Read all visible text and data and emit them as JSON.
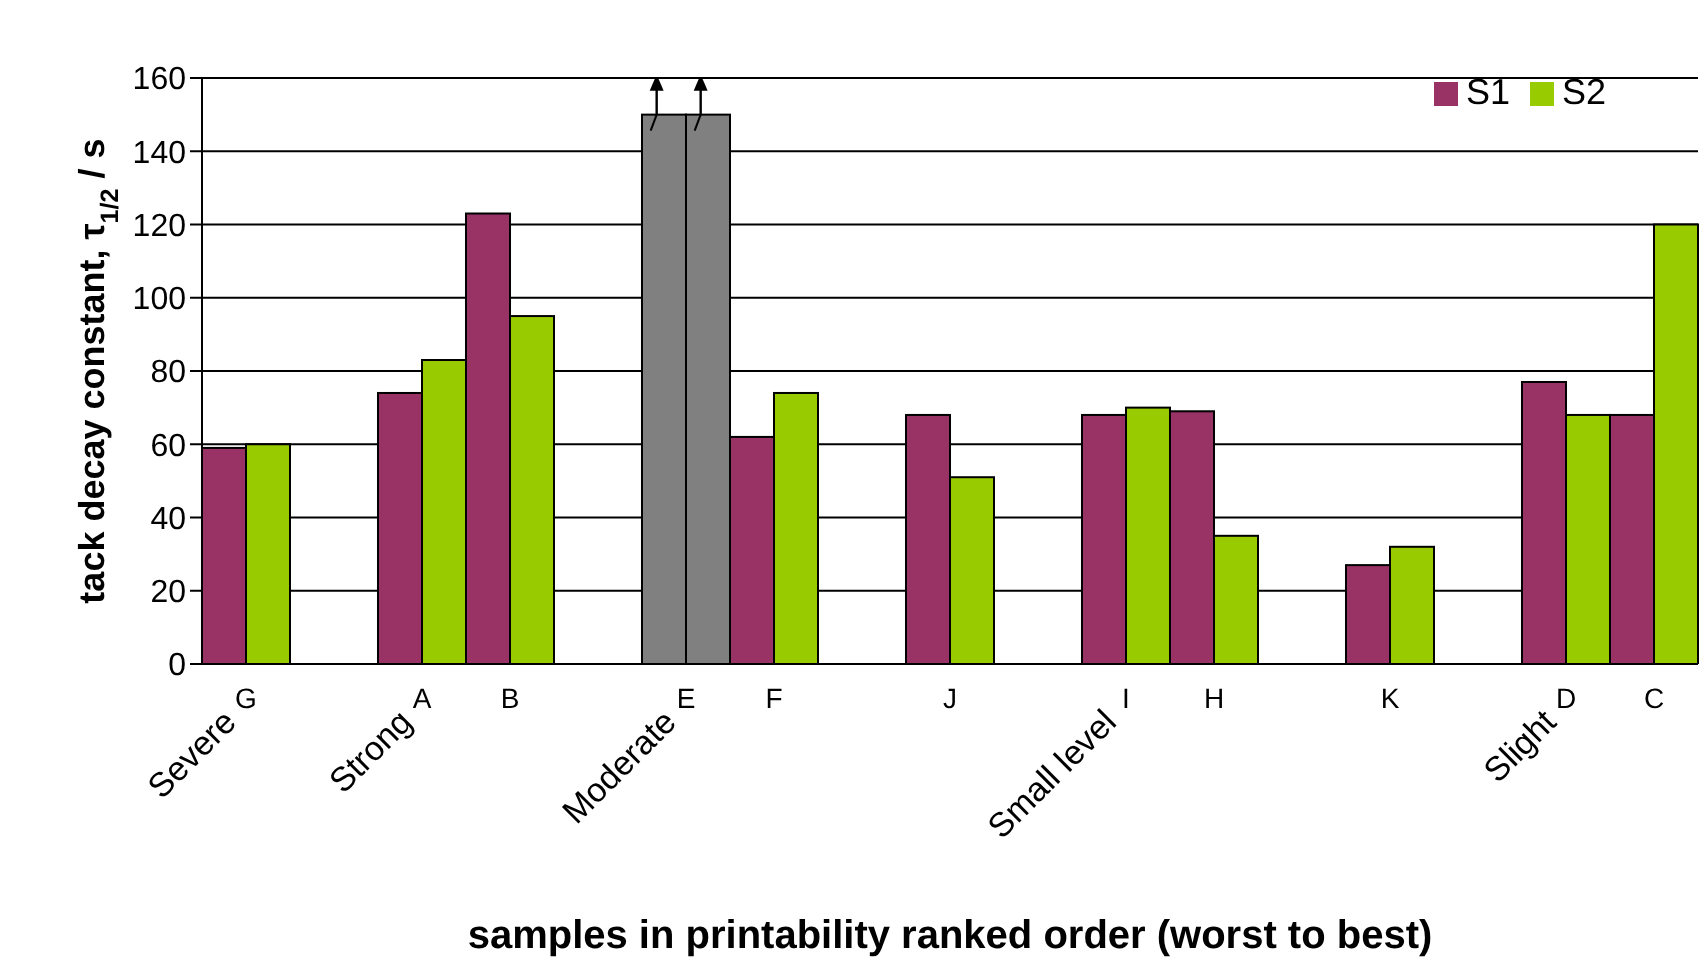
{
  "chart_data": {
    "type": "bar",
    "xlabel": "samples in printability ranked order (worst to best)",
    "ylabel": "tack decay constant,  τ$_{1/2}$ / s",
    "categories": [
      "G",
      null,
      "A",
      "B",
      null,
      "E",
      "F",
      null,
      "J",
      null,
      "I",
      "H",
      null,
      "K",
      null,
      "D",
      "C"
    ],
    "series": [
      {
        "name": "S1",
        "color": "#993366",
        "colors": [
          "#993366",
          null,
          "#993366",
          "#993366",
          null,
          "#808080",
          "#993366",
          null,
          "#993366",
          null,
          "#993366",
          "#993366",
          null,
          "#993366",
          null,
          "#993366",
          "#993366"
        ],
        "values": [
          59,
          null,
          74,
          123,
          null,
          150,
          62,
          null,
          68,
          null,
          68,
          69,
          null,
          27,
          null,
          77,
          68
        ]
      },
      {
        "name": "S2",
        "color": "#99cc00",
        "colors": [
          "#99cc00",
          null,
          "#99cc00",
          "#99cc00",
          null,
          "#808080",
          "#99cc00",
          null,
          "#99cc00",
          null,
          "#99cc00",
          "#99cc00",
          null,
          "#99cc00",
          null,
          "#99cc00",
          "#99cc00"
        ],
        "values": [
          60,
          null,
          83,
          95,
          null,
          150,
          74,
          null,
          51,
          null,
          70,
          35,
          null,
          32,
          null,
          68,
          120
        ]
      }
    ],
    "annotations": [
      "Severe",
      "Strong",
      "Moderate",
      "Small level",
      "Slight"
    ],
    "ylim": [
      0,
      160
    ],
    "yticks": [
      0,
      20,
      40,
      60,
      80,
      100,
      120,
      140,
      160
    ],
    "grid": "y",
    "legend": "top right"
  }
}
